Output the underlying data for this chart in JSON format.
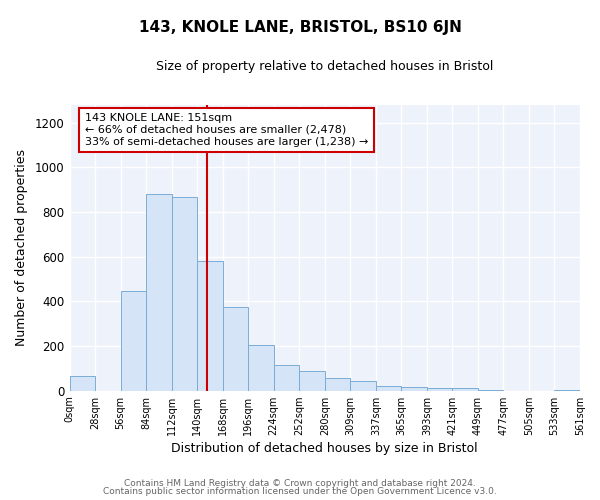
{
  "title": "143, KNOLE LANE, BRISTOL, BS10 6JN",
  "subtitle": "Size of property relative to detached houses in Bristol",
  "xlabel": "Distribution of detached houses by size in Bristol",
  "ylabel": "Number of detached properties",
  "bar_values": [
    65,
    0,
    445,
    880,
    865,
    580,
    375,
    205,
    115,
    90,
    55,
    45,
    20,
    15,
    10,
    10,
    5,
    0,
    0,
    5
  ],
  "bar_labels": [
    "0sqm",
    "28sqm",
    "56sqm",
    "84sqm",
    "112sqm",
    "140sqm",
    "168sqm",
    "196sqm",
    "224sqm",
    "252sqm",
    "280sqm",
    "309sqm",
    "337sqm",
    "365sqm",
    "393sqm",
    "421sqm",
    "449sqm",
    "477sqm",
    "505sqm",
    "533sqm",
    "561sqm"
  ],
  "bar_color": "#d6e4f7",
  "bar_edge_color": "#7aadd6",
  "vline_color": "#cc0000",
  "annotation_title": "143 KNOLE LANE: 151sqm",
  "annotation_line1": "← 66% of detached houses are smaller (2,478)",
  "annotation_line2": "33% of semi-detached houses are larger (1,238) →",
  "annotation_box_color": "#ffffff",
  "annotation_box_edge": "#cc0000",
  "ylim": [
    0,
    1280
  ],
  "yticks": [
    0,
    200,
    400,
    600,
    800,
    1000,
    1200
  ],
  "footer1": "Contains HM Land Registry data © Crown copyright and database right 2024.",
  "footer2": "Contains public sector information licensed under the Open Government Licence v3.0.",
  "fig_background": "#ffffff",
  "plot_background": "#eef2fb",
  "grid_color": "#ffffff"
}
